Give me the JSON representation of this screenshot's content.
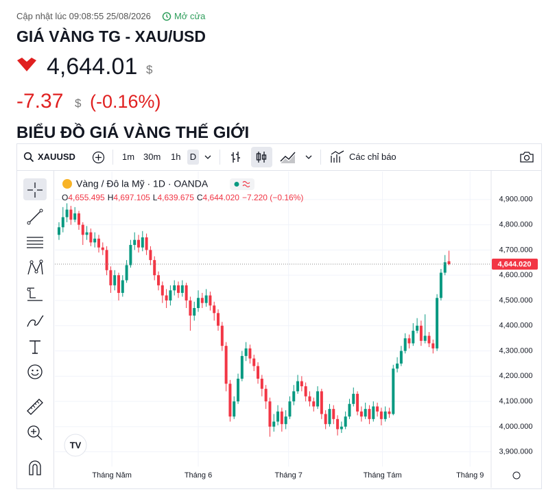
{
  "header": {
    "updated": "Cập nhật lúc 09:08:55 25/08/2026",
    "status": "Mở cửa",
    "title": "GIÁ VÀNG TG - XAU/USD",
    "price": "4,644.01",
    "price_unit": "$",
    "change": "-7.37",
    "change_unit": "$",
    "change_pct": "(-0.16%)",
    "section": "BIỂU ĐỒ GIÁ VÀNG THẾ GIỚI"
  },
  "toolbar": {
    "symbol": "XAUUSD",
    "intervals": [
      "1m",
      "30m",
      "1h",
      "D"
    ],
    "indicators": "Các chỉ báo"
  },
  "chart_data": {
    "type": "candlestick",
    "title": "Vàng / Đô la Mỹ · 1D · OANDA",
    "ohlc": [
      {
        "key": "O",
        "value": "4,655.495"
      },
      {
        "key": "H",
        "value": "4,697.105"
      },
      {
        "key": "L",
        "value": "4,639.675"
      },
      {
        "key": "C",
        "value": "4,644.020"
      }
    ],
    "change": "−7.220 (−0.16%)",
    "up_color": "#089981",
    "down_color": "#f23645",
    "grid": true,
    "open": [
      4760,
      4790,
      4830,
      4860,
      4820,
      4845,
      4800,
      4760,
      4770,
      4730,
      4745,
      4710,
      4700,
      4620,
      4560,
      4600,
      4530,
      4580,
      4640,
      4720,
      4740,
      4710,
      4750,
      4700,
      4660,
      4600,
      4560,
      4520,
      4500,
      4540,
      4560,
      4530,
      4560,
      4500,
      4440,
      4470,
      4510,
      4490,
      4520,
      4480,
      4450,
      4400,
      4320,
      4170,
      4040,
      4100,
      4190,
      4280,
      4310,
      4270,
      4240,
      4190,
      4150,
      4100,
      4000,
      4020,
      4060,
      4010,
      4040,
      4100,
      4140,
      4180,
      4160,
      4120,
      4100,
      4080,
      4140,
      4050,
      4010,
      4070,
      4030,
      3990,
      4000,
      4040,
      4090,
      4130,
      4060,
      4040,
      4070,
      4030,
      4080,
      4060,
      4030,
      4060,
      4050,
      4230,
      4250,
      4300,
      4350,
      4330,
      4380,
      4400,
      4340,
      4360,
      4330,
      4310,
      4510,
      4610,
      4655.495
    ],
    "high": [
      4810,
      4870,
      4885,
      4875,
      4870,
      4855,
      4810,
      4795,
      4785,
      4770,
      4760,
      4730,
      4715,
      4635,
      4620,
      4610,
      4600,
      4660,
      4740,
      4770,
      4760,
      4775,
      4765,
      4715,
      4675,
      4615,
      4575,
      4545,
      4560,
      4580,
      4575,
      4580,
      4570,
      4515,
      4495,
      4540,
      4530,
      4545,
      4535,
      4495,
      4465,
      4415,
      4335,
      4185,
      4120,
      4210,
      4300,
      4335,
      4325,
      4285,
      4255,
      4205,
      4165,
      4115,
      4050,
      4085,
      4075,
      4065,
      4120,
      4165,
      4205,
      4200,
      4175,
      4140,
      4115,
      4160,
      4150,
      4065,
      4090,
      4085,
      4045,
      4020,
      4060,
      4110,
      4155,
      4140,
      4080,
      4095,
      4085,
      4100,
      4095,
      4075,
      4080,
      4075,
      4245,
      4275,
      4320,
      4370,
      4365,
      4410,
      4430,
      4420,
      4445,
      4375,
      4345,
      4525,
      4625,
      4680,
      4697.105
    ],
    "low": [
      4740,
      4770,
      4810,
      4800,
      4810,
      4780,
      4720,
      4740,
      4715,
      4710,
      4690,
      4680,
      4600,
      4530,
      4540,
      4500,
      4515,
      4570,
      4630,
      4700,
      4690,
      4695,
      4680,
      4640,
      4580,
      4540,
      4490,
      4470,
      4480,
      4520,
      4510,
      4515,
      4470,
      4380,
      4420,
      4455,
      4470,
      4475,
      4460,
      4420,
      4380,
      4300,
      4140,
      4020,
      4030,
      4090,
      4180,
      4260,
      4250,
      4220,
      4170,
      4120,
      4070,
      3960,
      3980,
      4005,
      3980,
      3990,
      4030,
      4085,
      4130,
      4140,
      4100,
      4080,
      4060,
      4070,
      4030,
      3990,
      4000,
      4010,
      3965,
      3975,
      3990,
      4030,
      4080,
      4045,
      4020,
      4030,
      4010,
      4020,
      4040,
      4005,
      4020,
      4035,
      4045,
      4215,
      4240,
      4290,
      4310,
      4320,
      4370,
      4320,
      4330,
      4315,
      4290,
      4300,
      4500,
      4600,
      4639.675
    ],
    "close": [
      4790,
      4830,
      4860,
      4820,
      4845,
      4800,
      4760,
      4770,
      4730,
      4745,
      4710,
      4700,
      4620,
      4560,
      4600,
      4530,
      4580,
      4640,
      4720,
      4740,
      4710,
      4750,
      4700,
      4660,
      4600,
      4560,
      4520,
      4500,
      4540,
      4560,
      4530,
      4560,
      4500,
      4440,
      4470,
      4510,
      4490,
      4520,
      4480,
      4450,
      4400,
      4320,
      4170,
      4040,
      4100,
      4190,
      4280,
      4310,
      4270,
      4240,
      4190,
      4150,
      4100,
      4000,
      4020,
      4060,
      4010,
      4040,
      4100,
      4140,
      4180,
      4160,
      4120,
      4100,
      4080,
      4140,
      4050,
      4010,
      4070,
      4030,
      3990,
      4000,
      4040,
      4090,
      4130,
      4060,
      4040,
      4070,
      4030,
      4080,
      4060,
      4030,
      4060,
      4050,
      4230,
      4250,
      4300,
      4350,
      4330,
      4380,
      4400,
      4340,
      4360,
      4330,
      4310,
      4510,
      4610,
      4651.24,
      4644.02
    ],
    "last_price": {
      "value": 4644.02,
      "label": "4,644.020"
    },
    "xlim": [
      -1.03,
      108.6
    ],
    "xticks": [
      {
        "value": 13.3,
        "label": "Tháng Năm"
      },
      {
        "value": 35,
        "label": "Tháng 6"
      },
      {
        "value": 57.7,
        "label": "Tháng 7"
      },
      {
        "value": 81.3,
        "label": "Tháng Tám"
      },
      {
        "value": 103.3,
        "label": "Tháng 9"
      }
    ],
    "ylim": [
      3842,
      5011
    ],
    "yticks": [
      {
        "value": 3900,
        "label": "3,900.000"
      },
      {
        "value": 4000,
        "label": "4,000.000"
      },
      {
        "value": 4100,
        "label": "4,100.000"
      },
      {
        "value": 4200,
        "label": "4,200.000"
      },
      {
        "value": 4300,
        "label": "4,300.000"
      },
      {
        "value": 4400,
        "label": "4,400.000"
      },
      {
        "value": 4500,
        "label": "4,500.000"
      },
      {
        "value": 4600,
        "label": "4,600.000"
      },
      {
        "value": 4700,
        "label": "4,700.000"
      },
      {
        "value": 4800,
        "label": "4,800.000"
      },
      {
        "value": 4900,
        "label": "4,900.000"
      }
    ]
  }
}
